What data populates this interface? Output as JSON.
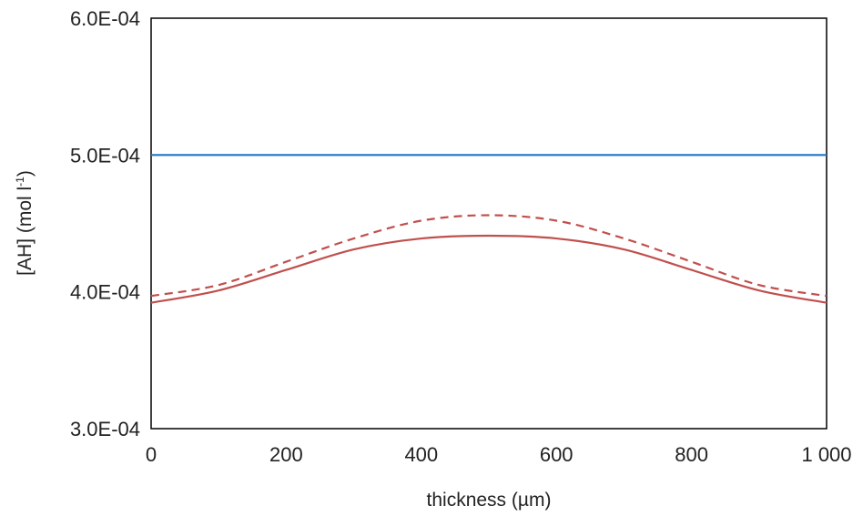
{
  "chart_data": {
    "type": "line",
    "xlabel": "thickness (µm)",
    "ylabel": "[AH] (mol l",
    "ylabel_sup": "-1",
    "ylabel_close": ")",
    "xlim": [
      0,
      1000
    ],
    "ylim": [
      0.0003,
      0.0006
    ],
    "x_ticks": [
      0,
      200,
      400,
      600,
      800,
      1000
    ],
    "x_tick_labels": [
      "0",
      "200",
      "400",
      "600",
      "800",
      "1 000"
    ],
    "y_ticks": [
      0.0003,
      0.0004,
      0.0005,
      0.0006
    ],
    "y_tick_labels": [
      "3.0E-04",
      "4.0E-04",
      "5.0E-04",
      "6.0E-04"
    ],
    "grid": false,
    "legend": "none",
    "series": [
      {
        "color": "#1f77c4",
        "style": "solid",
        "x": [
          0,
          100,
          200,
          300,
          400,
          500,
          600,
          700,
          800,
          900,
          1000
        ],
        "y": [
          0.0005,
          0.0005,
          0.0005,
          0.0005,
          0.0005,
          0.0005,
          0.0005,
          0.0005,
          0.0005,
          0.0005,
          0.0005
        ]
      },
      {
        "color": "#c0504d",
        "style": "dashed",
        "x": [
          0,
          100,
          200,
          300,
          400,
          500,
          600,
          700,
          800,
          900,
          1000
        ],
        "y": [
          0.000397,
          0.000405,
          0.000422,
          0.000439,
          0.000452,
          0.000456,
          0.000452,
          0.000439,
          0.000422,
          0.000405,
          0.000397
        ]
      },
      {
        "color": "#c0504d",
        "style": "solid",
        "x": [
          0,
          100,
          200,
          300,
          400,
          500,
          600,
          700,
          800,
          900,
          1000
        ],
        "y": [
          0.000392,
          0.000401,
          0.000416,
          0.000431,
          0.000439,
          0.000441,
          0.000439,
          0.000431,
          0.000416,
          0.000401,
          0.000392
        ]
      }
    ]
  }
}
